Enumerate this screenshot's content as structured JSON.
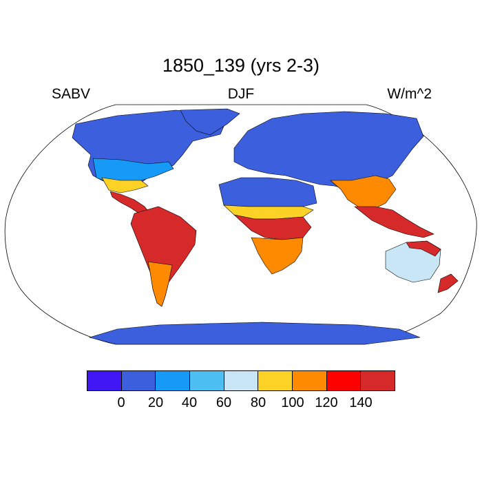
{
  "title": "1850_139 (yrs 2-3)",
  "left_label": "SABV",
  "center_label": "DJF",
  "right_label": "W/m^2",
  "colorbar": {
    "colors": [
      "#4016f5",
      "#3c5fdd",
      "#1799f7",
      "#4ebff3",
      "#c8e6f6",
      "#fdd226",
      "#fd8a00",
      "#fd0000",
      "#d62a2a"
    ],
    "labels": [
      "0",
      "20",
      "40",
      "60",
      "80",
      "100",
      "120",
      "140"
    ]
  },
  "map": {
    "region_colors": {
      "high_latitude": "#3c5fdd",
      "mid_latitude": "#1799f7",
      "subtropical": "#fdd226",
      "warm": "#fd8a00",
      "tropical": "#d62a2a",
      "arid": "#c8e6f6"
    }
  }
}
